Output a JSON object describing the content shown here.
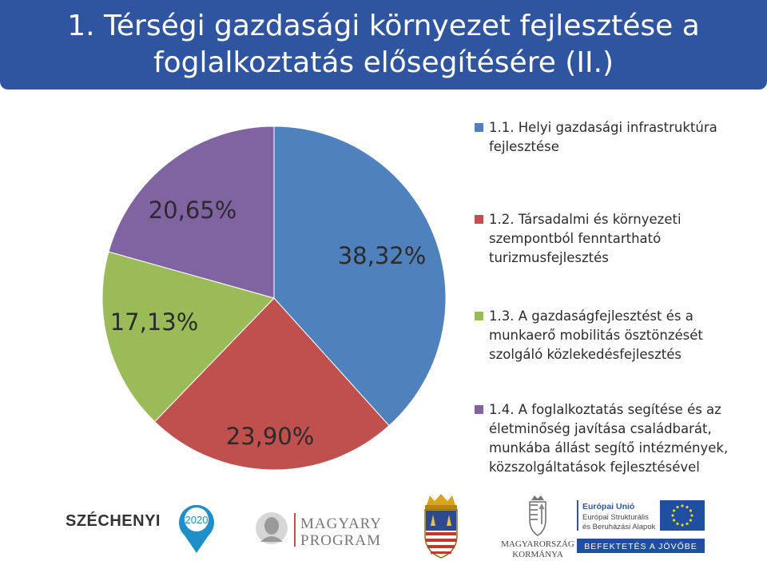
{
  "slide": {
    "title": "1. Térségi gazdasági környezet fejlesztése a foglalkoztatás elősegítésére (II.)"
  },
  "chart_data": {
    "type": "pie",
    "categories": [
      "1.1. Helyi gazdasági infrastruktúra fejlesztése",
      "1.2. Társadalmi és környezeti szempontból fenntartható turizmusfejlesztés",
      "1.3. A gazdaságfejlesztést és a munkaerő mobilitás ösztönzését szolgáló közlekedésfejlesztés",
      "1.4. A foglalkoztatás segítése és az életminőség javítása családbarát, munkába állást segítő intézmények, közszolgáltatások fejlesztésével"
    ],
    "values": [
      38.32,
      23.9,
      17.13,
      20.65
    ],
    "data_labels": [
      "38,32%",
      "23,90%",
      "17,13%",
      "20,65%"
    ],
    "colors": [
      "#4f81bd",
      "#c0504d",
      "#9bbb59",
      "#8064a2"
    ],
    "legend_position": "right"
  },
  "logos": {
    "szechenyi": {
      "word": "SZÉCHENYI",
      "year": "2020"
    },
    "magyary": {
      "line1": "MAGYARY",
      "line2": "PROGRAM"
    },
    "government": {
      "line1": "MAGYARORSZÁG",
      "line2": "KORMÁNYA"
    },
    "eu": {
      "heading": "Európai Unió",
      "line1": "Európai Strukturális",
      "line2": "és Beruházási Alapok",
      "banner": "BEFEKTETÉS A JÖVŐBE"
    }
  }
}
